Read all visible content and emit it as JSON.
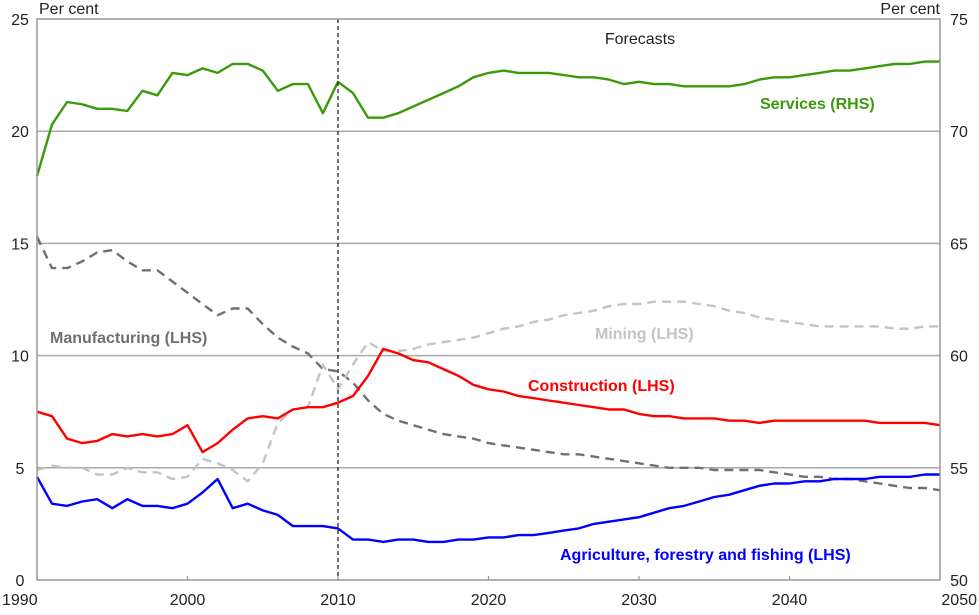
{
  "chart_data": {
    "type": "line",
    "title": "",
    "left_axis": {
      "label": "Per cent",
      "ylim": [
        0,
        25
      ],
      "ticks": [
        "0",
        "5",
        "10",
        "15",
        "20",
        "25"
      ]
    },
    "right_axis": {
      "label": "Per cent",
      "ylim": [
        50,
        75
      ],
      "ticks": [
        "50",
        "55",
        "60",
        "65",
        "70",
        "75"
      ]
    },
    "xlim": [
      1990,
      2050
    ],
    "x_ticks": [
      "1990",
      "2000",
      "2010",
      "2020",
      "2030",
      "2040",
      "2050"
    ],
    "grid": true,
    "forecast_start": 2010,
    "forecast_label": "Forecasts",
    "x": [
      1990,
      1991,
      1992,
      1993,
      1994,
      1995,
      1996,
      1997,
      1998,
      1999,
      2000,
      2001,
      2002,
      2003,
      2004,
      2005,
      2006,
      2007,
      2008,
      2009,
      2010,
      2011,
      2012,
      2013,
      2014,
      2015,
      2016,
      2017,
      2018,
      2019,
      2020,
      2021,
      2022,
      2023,
      2024,
      2025,
      2026,
      2027,
      2028,
      2029,
      2030,
      2031,
      2032,
      2033,
      2034,
      2035,
      2036,
      2037,
      2038,
      2039,
      2040,
      2041,
      2042,
      2043,
      2044,
      2045,
      2046,
      2047,
      2048,
      2049,
      2050
    ],
    "series": [
      {
        "name": "Services (RHS)",
        "axis": "right",
        "color": "#3a9a0c",
        "dashed": false,
        "values": [
          68.0,
          70.3,
          71.3,
          71.2,
          71.0,
          71.0,
          70.9,
          71.8,
          71.6,
          72.6,
          72.5,
          72.8,
          72.6,
          73.0,
          73.0,
          72.7,
          71.8,
          72.1,
          72.1,
          70.8,
          72.2,
          71.7,
          70.6,
          70.6,
          70.8,
          71.1,
          71.4,
          71.7,
          72.0,
          72.4,
          72.6,
          72.7,
          72.6,
          72.6,
          72.6,
          72.5,
          72.4,
          72.4,
          72.3,
          72.1,
          72.2,
          72.1,
          72.1,
          72.0,
          72.0,
          72.0,
          72.0,
          72.1,
          72.3,
          72.4,
          72.4,
          72.5,
          72.6,
          72.7,
          72.7,
          72.8,
          72.9,
          73.0,
          73.0,
          73.1,
          73.1
        ]
      },
      {
        "name": "Manufacturing (LHS)",
        "axis": "left",
        "color": "#707070",
        "dashed": true,
        "values": [
          15.3,
          13.9,
          13.9,
          14.2,
          14.6,
          14.7,
          14.2,
          13.8,
          13.8,
          13.3,
          12.8,
          12.3,
          11.8,
          12.1,
          12.1,
          11.4,
          10.8,
          10.4,
          10.1,
          9.4,
          9.3,
          8.8,
          8.0,
          7.4,
          7.1,
          6.9,
          6.7,
          6.5,
          6.4,
          6.3,
          6.1,
          6.0,
          5.9,
          5.8,
          5.7,
          5.6,
          5.6,
          5.5,
          5.4,
          5.3,
          5.2,
          5.1,
          5.0,
          5.0,
          5.0,
          4.9,
          4.9,
          4.9,
          4.9,
          4.8,
          4.7,
          4.6,
          4.6,
          4.5,
          4.5,
          4.4,
          4.3,
          4.2,
          4.1,
          4.1,
          4.0
        ]
      },
      {
        "name": "Mining (LHS)",
        "axis": "left",
        "color": "#c4c4c4",
        "dashed": true,
        "values": [
          4.9,
          5.1,
          5.0,
          5.0,
          4.7,
          4.7,
          5.0,
          4.8,
          4.8,
          4.5,
          4.6,
          5.4,
          5.2,
          4.9,
          4.4,
          5.2,
          7.0,
          7.6,
          7.7,
          9.6,
          8.5,
          9.6,
          10.6,
          10.2,
          10.2,
          10.3,
          10.5,
          10.6,
          10.7,
          10.8,
          11.0,
          11.2,
          11.3,
          11.5,
          11.6,
          11.8,
          11.9,
          12.0,
          12.2,
          12.3,
          12.3,
          12.4,
          12.4,
          12.4,
          12.3,
          12.2,
          12.0,
          11.9,
          11.7,
          11.6,
          11.5,
          11.4,
          11.3,
          11.3,
          11.3,
          11.3,
          11.3,
          11.2,
          11.2,
          11.3,
          11.3
        ]
      },
      {
        "name": "Construction (LHS)",
        "axis": "left",
        "color": "#ff0000",
        "dashed": false,
        "values": [
          7.5,
          7.3,
          6.3,
          6.1,
          6.2,
          6.5,
          6.4,
          6.5,
          6.4,
          6.5,
          6.9,
          5.7,
          6.1,
          6.7,
          7.2,
          7.3,
          7.2,
          7.6,
          7.7,
          7.7,
          7.9,
          8.2,
          9.1,
          10.3,
          10.1,
          9.8,
          9.7,
          9.4,
          9.1,
          8.7,
          8.5,
          8.4,
          8.2,
          8.1,
          8.0,
          7.9,
          7.8,
          7.7,
          7.6,
          7.6,
          7.4,
          7.3,
          7.3,
          7.2,
          7.2,
          7.2,
          7.1,
          7.1,
          7.0,
          7.1,
          7.1,
          7.1,
          7.1,
          7.1,
          7.1,
          7.1,
          7.0,
          7.0,
          7.0,
          7.0,
          6.9
        ]
      },
      {
        "name": "Agriculture, forestry and fishing (LHS)",
        "axis": "left",
        "color": "#0000ff",
        "dashed": false,
        "values": [
          4.6,
          3.4,
          3.3,
          3.5,
          3.6,
          3.2,
          3.6,
          3.3,
          3.3,
          3.2,
          3.4,
          3.9,
          4.5,
          3.2,
          3.4,
          3.1,
          2.9,
          2.4,
          2.4,
          2.4,
          2.3,
          1.8,
          1.8,
          1.7,
          1.8,
          1.8,
          1.7,
          1.7,
          1.8,
          1.8,
          1.9,
          1.9,
          2.0,
          2.0,
          2.1,
          2.2,
          2.3,
          2.5,
          2.6,
          2.7,
          2.8,
          3.0,
          3.2,
          3.3,
          3.5,
          3.7,
          3.8,
          4.0,
          4.2,
          4.3,
          4.3,
          4.4,
          4.4,
          4.5,
          4.5,
          4.5,
          4.6,
          4.6,
          4.6,
          4.7,
          4.7
        ]
      }
    ]
  }
}
